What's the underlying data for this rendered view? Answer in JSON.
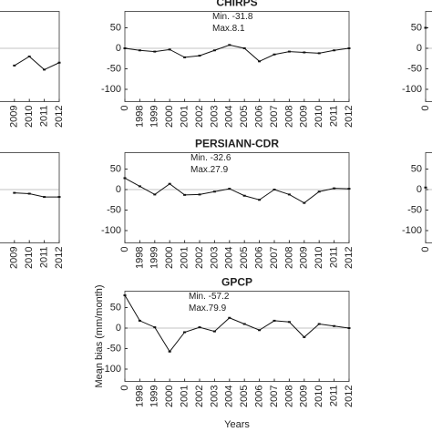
{
  "chart_data": [
    {
      "type": "line",
      "categories": [
        "2009",
        "2010",
        "2011",
        "2012"
      ],
      "values": [
        -42,
        -20,
        -52,
        -35
      ],
      "ylim": [
        -130,
        90
      ]
    },
    {
      "type": "line",
      "title": "CHIRPS",
      "annotations": [
        "Min. -31.8",
        "Max.8.1"
      ],
      "categories": [
        "0",
        "1998",
        "1999",
        "2000",
        "2001",
        "2002",
        "2003",
        "2004",
        "2005",
        "2006",
        "2007",
        "2008",
        "2009",
        "2010",
        "2011",
        "2012"
      ],
      "values": [
        0,
        -5,
        -8,
        -3,
        -22,
        -18,
        -5,
        8.1,
        0,
        -31.8,
        -15,
        -8,
        -10,
        -12,
        -5,
        0
      ],
      "ylim": [
        -130,
        90
      ],
      "yticks": [
        50,
        0,
        -50,
        -100
      ]
    },
    {
      "type": "line",
      "categories": [
        "0"
      ],
      "values": [
        50
      ],
      "ylim": [
        -130,
        90
      ],
      "yticks": [
        50,
        0,
        -50,
        -100
      ]
    },
    {
      "type": "line",
      "categories": [
        "2009",
        "2010",
        "2011",
        "2012"
      ],
      "values": [
        -8,
        -10,
        -18,
        -18
      ],
      "ylim": [
        -130,
        90
      ]
    },
    {
      "type": "line",
      "title": "PERSIANN-CDR",
      "annotations": [
        "Min. -32.6",
        "Max.27.9"
      ],
      "categories": [
        "0",
        "1998",
        "1999",
        "2000",
        "2001",
        "2002",
        "2003",
        "2004",
        "2005",
        "2006",
        "2007",
        "2008",
        "2009",
        "2010",
        "2011",
        "2012"
      ],
      "values": [
        27.9,
        8,
        -12,
        14,
        -13,
        -12,
        -5,
        2,
        -15,
        -25,
        0,
        -12,
        -32.6,
        -5,
        3,
        2
      ],
      "ylim": [
        -130,
        90
      ],
      "yticks": [
        50,
        0,
        -50,
        -100
      ]
    },
    {
      "type": "line",
      "categories": [
        "0"
      ],
      "values": [
        5
      ],
      "ylim": [
        -130,
        90
      ],
      "yticks": [
        50,
        0,
        -50,
        -100
      ]
    },
    {
      "type": "line",
      "title": "GPCP",
      "annotations": [
        "Min. -57.2",
        "Max.79.9"
      ],
      "y_label": "Mean bias (mm/month)",
      "x_label": "Years",
      "categories": [
        "0",
        "1998",
        "1999",
        "2000",
        "2001",
        "2002",
        "2003",
        "2004",
        "2005",
        "2006",
        "2007",
        "2008",
        "2009",
        "2010",
        "2011",
        "2012"
      ],
      "values": [
        79.9,
        18,
        2,
        -57.2,
        -10,
        2,
        -8,
        25,
        10,
        -5,
        18,
        15,
        -22,
        10,
        5,
        0
      ],
      "ylim": [
        -130,
        90
      ],
      "yticks": [
        50,
        0,
        -50,
        -100
      ]
    }
  ]
}
